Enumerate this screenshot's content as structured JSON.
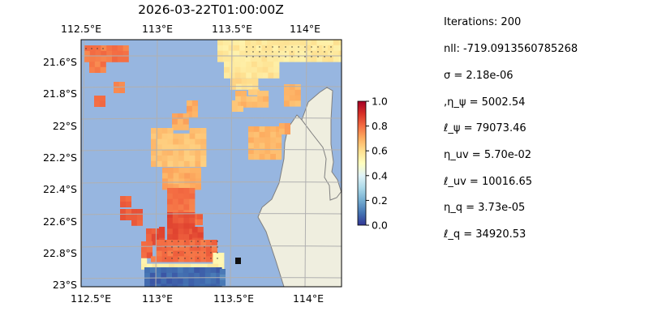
{
  "title": "2026-03-22T01:00:00Z",
  "map": {
    "top_ticks": [
      "112.5°E",
      "113°E",
      "113.5°E",
      "114°E"
    ],
    "bottom_ticks": [
      "112.5°E",
      "113°E",
      "113.5°E",
      "114°E"
    ],
    "lat_ticks": [
      "21.6°S",
      "21.8°S",
      "22°S",
      "22.2°S",
      "22.4°S",
      "22.6°S",
      "22.8°S",
      "23°S"
    ],
    "lon_range": [
      112.5,
      114.2
    ],
    "lat_range": [
      -23.0,
      -21.5
    ],
    "ocean_color": "#97b6e0",
    "land_color": "#efeedf",
    "grid": true
  },
  "colorbar": {
    "ticks": [
      "0.0",
      "0.2",
      "0.4",
      "0.6",
      "0.8",
      "1.0"
    ],
    "colormap": "RdYlBu_r",
    "range": [
      0,
      1
    ]
  },
  "params": [
    "Iterations: 200",
    "nll: -719.0913560785268",
    "σ = 2.18e-06",
    ",η_ψ = 5002.54",
    "ℓ_ψ = 79073.46",
    "η_uv = 5.70e-02",
    "ℓ_uv = 10016.65",
    "η_q = 3.73e-05",
    "ℓ_q = 34920.53"
  ]
}
